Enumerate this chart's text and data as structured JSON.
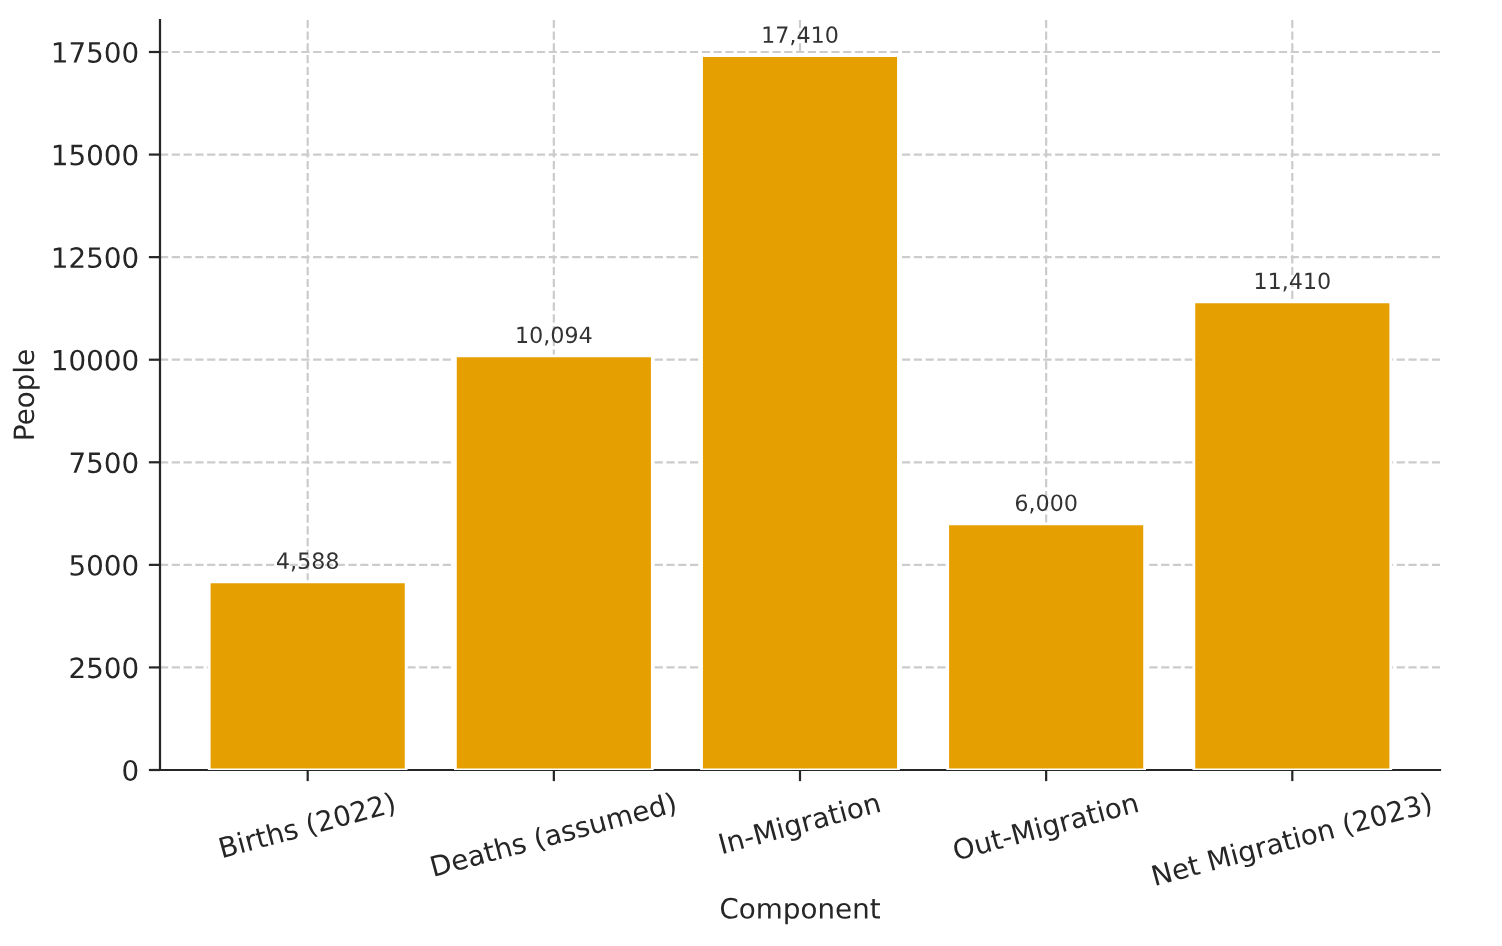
{
  "chart_data": {
    "type": "bar",
    "xlabel": "Component",
    "ylabel": "People",
    "categories": [
      "Births (2022)",
      "Deaths (assumed)",
      "In-Migration",
      "Out-Migration",
      "Net Migration (2023)"
    ],
    "values": [
      4588,
      10094,
      17410,
      6000,
      11410
    ],
    "value_labels": [
      "4,588",
      "10,094",
      "17,410",
      "6,000",
      "11,410"
    ],
    "color": "#e69f00",
    "ylim": [
      0,
      18280
    ],
    "yticks": [
      0,
      2500,
      5000,
      7500,
      10000,
      12500,
      15000,
      17500
    ],
    "grid": true
  }
}
